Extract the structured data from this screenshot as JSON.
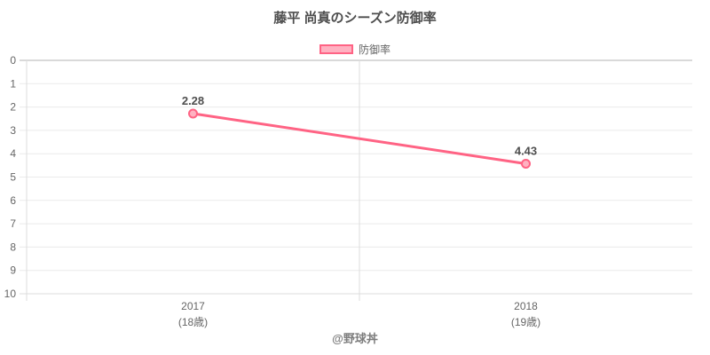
{
  "chart": {
    "title": "藤平 尚真のシーズン防御率",
    "legend_label": "防御率",
    "watermark": "@野球丼"
  },
  "chart_data": {
    "type": "line",
    "title": "藤平 尚真のシーズン防御率",
    "categories": [
      "2017",
      "2018"
    ],
    "category_sublabels": [
      "(18歳)",
      "(19歳)"
    ],
    "series": [
      {
        "name": "防御率",
        "values": [
          2.28,
          4.43
        ]
      }
    ],
    "data_labels": [
      "2.28",
      "4.43"
    ],
    "ylim": [
      0,
      10
    ],
    "y_ticks": [
      0,
      1,
      2,
      3,
      4,
      5,
      6,
      7,
      8,
      9,
      10
    ],
    "y_axis_reversed": true,
    "grid": true,
    "legend_position": "top",
    "colors": {
      "line": "#ff6384",
      "point_fill": "#ffb1c1",
      "grid": "#eaeaea",
      "zero_line": "#b3b3b3",
      "axis_line": "#dcdcdc"
    }
  }
}
